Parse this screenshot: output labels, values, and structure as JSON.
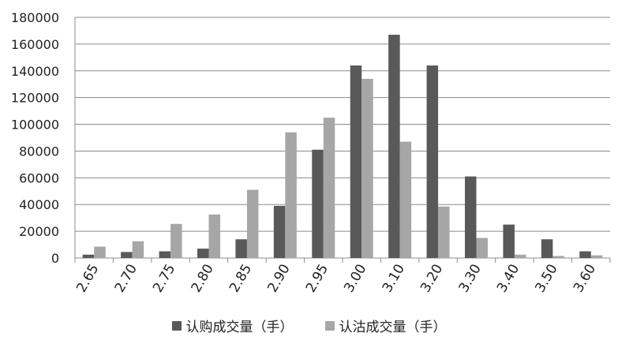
{
  "chart_data": {
    "type": "bar",
    "categories": [
      "2.65",
      "2.70",
      "2.75",
      "2.80",
      "2.85",
      "2.90",
      "2.95",
      "3.00",
      "3.10",
      "3.20",
      "3.30",
      "3.40",
      "3.50",
      "3.60"
    ],
    "series": [
      {
        "name": "认购成交量（手）",
        "color": "#595959",
        "values": [
          2500,
          4500,
          5000,
          7000,
          14000,
          39000,
          81000,
          144000,
          167000,
          144000,
          61000,
          25000,
          14000,
          5000
        ]
      },
      {
        "name": "认沽成交量（手）",
        "color": "#a6a6a6",
        "values": [
          8500,
          12500,
          25500,
          32500,
          51000,
          94000,
          105000,
          134000,
          87000,
          38500,
          15000,
          2500,
          1500,
          2000
        ]
      }
    ],
    "ylim": [
      0,
      180000
    ],
    "yticks": [
      "0",
      "20000",
      "40000",
      "60000",
      "80000",
      "100000",
      "120000",
      "140000",
      "160000",
      "180000"
    ],
    "grid": true,
    "legend": "bottom"
  }
}
